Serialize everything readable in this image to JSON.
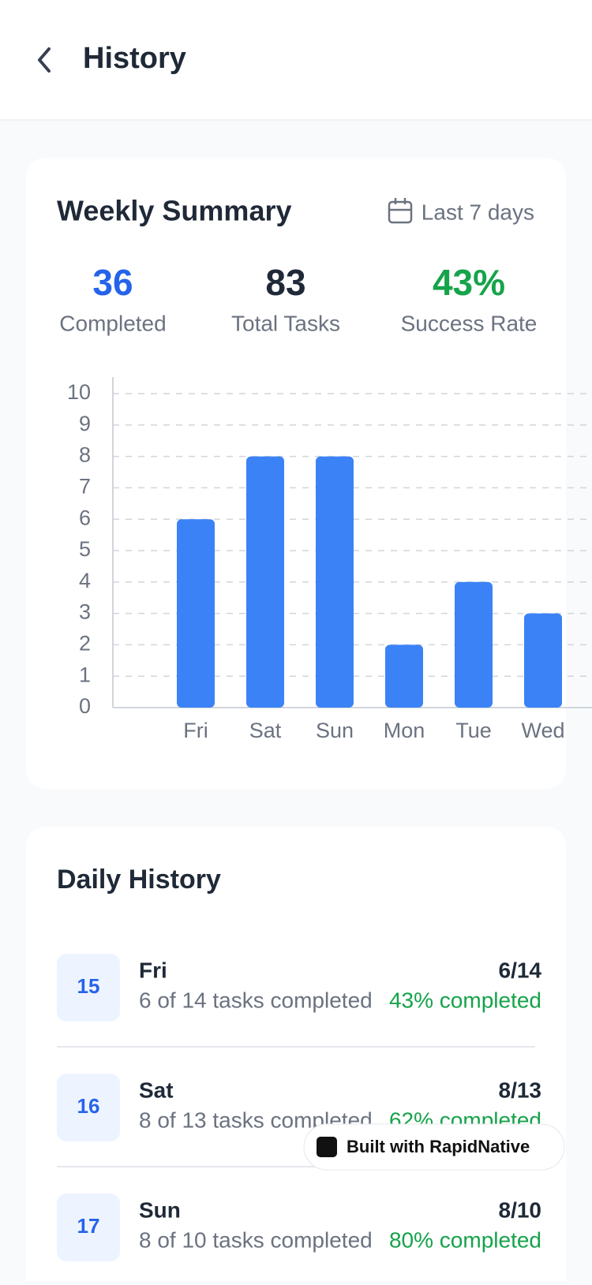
{
  "header": {
    "title": "History"
  },
  "summary": {
    "title": "Weekly Summary",
    "range": "Last 7 days",
    "stats": [
      {
        "value": "36",
        "label": "Completed"
      },
      {
        "value": "83",
        "label": "Total Tasks"
      },
      {
        "value": "43%",
        "label": "Success Rate"
      }
    ]
  },
  "chart_data": {
    "type": "bar",
    "categories": [
      "Fri",
      "Sat",
      "Sun",
      "Mon",
      "Tue",
      "Wed"
    ],
    "values": [
      6,
      8,
      8,
      2,
      4,
      3
    ],
    "color": "#3b82f6",
    "ylim": [
      0,
      10
    ],
    "yticks": [
      0,
      1,
      2,
      3,
      4,
      5,
      6,
      7,
      8,
      9,
      10
    ],
    "grid": true
  },
  "daily": {
    "title": "Daily History",
    "items": [
      {
        "day": "15",
        "name": "Fri",
        "detail": "6 of 14 tasks completed",
        "fraction": "6/14",
        "percent": "43% completed"
      },
      {
        "day": "16",
        "name": "Sat",
        "detail": "8 of 13 tasks completed",
        "fraction": "8/13",
        "percent": "62% completed"
      },
      {
        "day": "17",
        "name": "Sun",
        "detail": "8 of 10 tasks completed",
        "fraction": "8/10",
        "percent": "80% completed"
      }
    ]
  },
  "badge": {
    "text": "Built with RapidNative"
  }
}
